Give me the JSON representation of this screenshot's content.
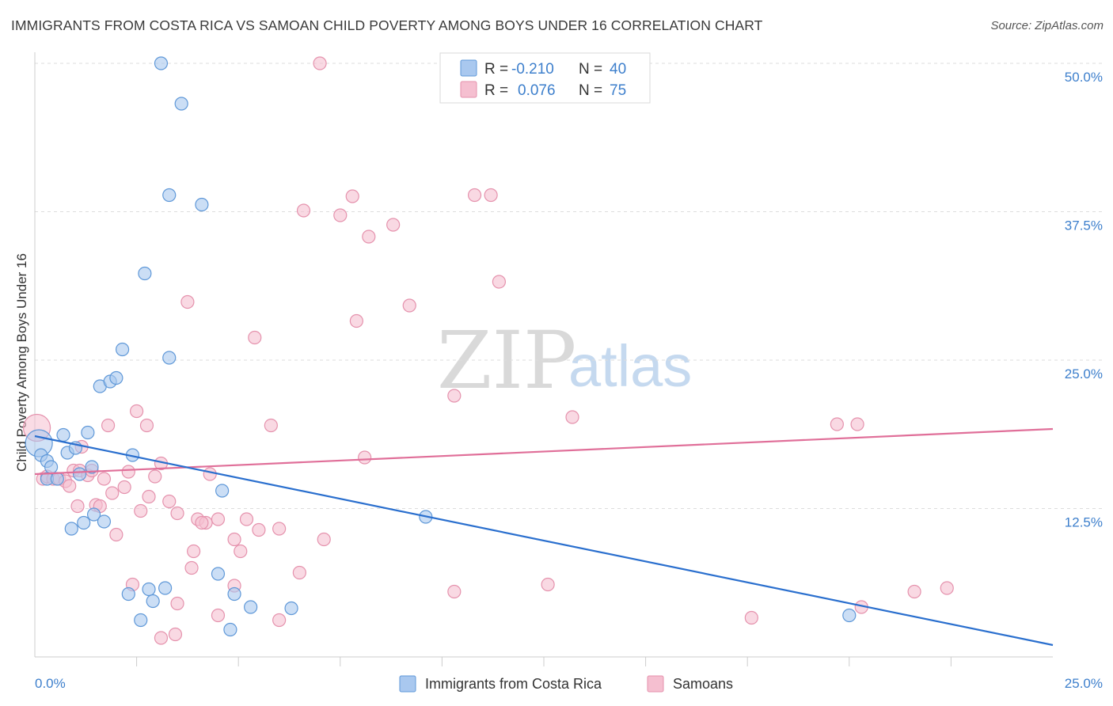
{
  "header": {
    "title": "IMMIGRANTS FROM COSTA RICA VS SAMOAN CHILD POVERTY AMONG BOYS UNDER 16 CORRELATION CHART",
    "source": "Source: ZipAtlas.com"
  },
  "watermark": {
    "zip": "ZIP",
    "atlas": "atlas"
  },
  "colors": {
    "blue_fill": "#a9c8ef",
    "blue_stroke": "#5f98d8",
    "blue_line": "#2a6fce",
    "pink_fill": "#f5bfd0",
    "pink_stroke": "#e592ad",
    "pink_line": "#e06f99",
    "tick_text": "#3d7fcc",
    "grid": "#dddddd"
  },
  "legend_top": {
    "rows": [
      {
        "r_label": "R =",
        "r_value": "-0.210",
        "n_label": "N =",
        "n_value": "40"
      },
      {
        "r_label": "R =",
        "r_value": "0.076",
        "n_label": "N =",
        "n_value": "75"
      }
    ]
  },
  "legend_bottom": {
    "items": [
      {
        "label": "Immigrants from Costa Rica"
      },
      {
        "label": "Samoans"
      }
    ]
  },
  "chart_data": {
    "type": "scatter",
    "title": "IMMIGRANTS FROM COSTA RICA VS SAMOAN CHILD POVERTY AMONG BOYS UNDER 16 CORRELATION CHART",
    "xlabel": "",
    "ylabel": "Child Poverty Among Boys Under 16",
    "xlim": [
      0,
      25
    ],
    "ylim": [
      0,
      50
    ],
    "x_tick_labels": [
      "0.0%",
      "25.0%"
    ],
    "y_ticks": [
      12.5,
      25,
      37.5,
      50
    ],
    "y_tick_labels": [
      "12.5%",
      "25.0%",
      "37.5%",
      "50.0%"
    ],
    "grid": "horizontal dashed",
    "legend_position": "top-center",
    "series": [
      {
        "name": "Immigrants from Costa Rica",
        "color": "#a9c8ef",
        "trend": {
          "x": [
            0,
            25
          ],
          "y": [
            18.6,
            1.0
          ]
        },
        "points": [
          {
            "x": 0.1,
            "y": 18.0,
            "big": true
          },
          {
            "x": 0.15,
            "y": 17.0
          },
          {
            "x": 0.3,
            "y": 16.5
          },
          {
            "x": 0.4,
            "y": 16.0
          },
          {
            "x": 0.3,
            "y": 15.0
          },
          {
            "x": 0.55,
            "y": 15.0
          },
          {
            "x": 0.7,
            "y": 18.7
          },
          {
            "x": 0.8,
            "y": 17.2
          },
          {
            "x": 1.0,
            "y": 17.6
          },
          {
            "x": 1.1,
            "y": 15.4
          },
          {
            "x": 1.3,
            "y": 18.9
          },
          {
            "x": 1.4,
            "y": 16.0
          },
          {
            "x": 0.9,
            "y": 10.8
          },
          {
            "x": 1.2,
            "y": 11.3
          },
          {
            "x": 1.45,
            "y": 12.0
          },
          {
            "x": 1.7,
            "y": 11.4
          },
          {
            "x": 1.6,
            "y": 22.8
          },
          {
            "x": 1.85,
            "y": 23.2
          },
          {
            "x": 2.0,
            "y": 23.5
          },
          {
            "x": 2.15,
            "y": 25.9
          },
          {
            "x": 2.4,
            "y": 17.0
          },
          {
            "x": 2.7,
            "y": 32.3
          },
          {
            "x": 3.1,
            "y": 50.0
          },
          {
            "x": 3.6,
            "y": 46.6
          },
          {
            "x": 3.3,
            "y": 38.9
          },
          {
            "x": 4.1,
            "y": 38.1
          },
          {
            "x": 3.3,
            "y": 25.2
          },
          {
            "x": 4.6,
            "y": 14.0
          },
          {
            "x": 2.3,
            "y": 5.3
          },
          {
            "x": 2.8,
            "y": 5.7
          },
          {
            "x": 2.9,
            "y": 4.7
          },
          {
            "x": 3.2,
            "y": 5.8
          },
          {
            "x": 2.6,
            "y": 3.1
          },
          {
            "x": 4.5,
            "y": 7.0
          },
          {
            "x": 4.9,
            "y": 5.3
          },
          {
            "x": 4.8,
            "y": 2.3
          },
          {
            "x": 5.3,
            "y": 4.2
          },
          {
            "x": 6.3,
            "y": 4.1
          },
          {
            "x": 9.6,
            "y": 11.8
          },
          {
            "x": 20.0,
            "y": 3.5
          }
        ]
      },
      {
        "name": "Samoans",
        "color": "#f5bfd0",
        "trend": {
          "x": [
            0,
            25
          ],
          "y": [
            15.4,
            19.2
          ]
        },
        "points": [
          {
            "x": 0.05,
            "y": 19.3,
            "big": true
          },
          {
            "x": 0.2,
            "y": 15.0
          },
          {
            "x": 0.3,
            "y": 15.2
          },
          {
            "x": 0.45,
            "y": 15.0
          },
          {
            "x": 0.6,
            "y": 15.0
          },
          {
            "x": 0.75,
            "y": 14.8
          },
          {
            "x": 0.85,
            "y": 14.4
          },
          {
            "x": 0.95,
            "y": 15.7
          },
          {
            "x": 1.1,
            "y": 15.7
          },
          {
            "x": 1.15,
            "y": 17.7
          },
          {
            "x": 1.3,
            "y": 15.3
          },
          {
            "x": 1.4,
            "y": 15.7
          },
          {
            "x": 1.05,
            "y": 12.7
          },
          {
            "x": 1.5,
            "y": 12.8
          },
          {
            "x": 1.6,
            "y": 12.7
          },
          {
            "x": 1.7,
            "y": 15.0
          },
          {
            "x": 1.9,
            "y": 13.8
          },
          {
            "x": 1.8,
            "y": 19.5
          },
          {
            "x": 2.0,
            "y": 10.3
          },
          {
            "x": 2.2,
            "y": 14.3
          },
          {
            "x": 2.3,
            "y": 15.6
          },
          {
            "x": 2.5,
            "y": 20.7
          },
          {
            "x": 2.6,
            "y": 12.3
          },
          {
            "x": 2.75,
            "y": 19.5
          },
          {
            "x": 2.8,
            "y": 13.5
          },
          {
            "x": 2.95,
            "y": 15.2
          },
          {
            "x": 3.1,
            "y": 16.3
          },
          {
            "x": 3.3,
            "y": 13.1
          },
          {
            "x": 3.5,
            "y": 12.1
          },
          {
            "x": 3.75,
            "y": 29.9
          },
          {
            "x": 3.9,
            "y": 8.9
          },
          {
            "x": 3.85,
            "y": 7.5
          },
          {
            "x": 4.0,
            "y": 11.6
          },
          {
            "x": 4.2,
            "y": 11.3
          },
          {
            "x": 4.3,
            "y": 15.4
          },
          {
            "x": 4.1,
            "y": 11.3
          },
          {
            "x": 4.5,
            "y": 11.6
          },
          {
            "x": 4.9,
            "y": 9.9
          },
          {
            "x": 5.05,
            "y": 8.9
          },
          {
            "x": 5.2,
            "y": 11.6
          },
          {
            "x": 5.4,
            "y": 26.9
          },
          {
            "x": 5.5,
            "y": 10.7
          },
          {
            "x": 5.8,
            "y": 19.5
          },
          {
            "x": 6.0,
            "y": 10.8
          },
          {
            "x": 6.6,
            "y": 37.6
          },
          {
            "x": 6.5,
            "y": 7.1
          },
          {
            "x": 7.1,
            "y": 9.9
          },
          {
            "x": 7.5,
            "y": 37.2
          },
          {
            "x": 7.8,
            "y": 38.8
          },
          {
            "x": 7.9,
            "y": 28.3
          },
          {
            "x": 8.2,
            "y": 35.4
          },
          {
            "x": 8.1,
            "y": 16.8
          },
          {
            "x": 8.8,
            "y": 36.4
          },
          {
            "x": 9.2,
            "y": 29.6
          },
          {
            "x": 10.3,
            "y": 22.0
          },
          {
            "x": 10.8,
            "y": 38.9
          },
          {
            "x": 11.2,
            "y": 38.9
          },
          {
            "x": 11.4,
            "y": 31.6
          },
          {
            "x": 13.2,
            "y": 20.2
          },
          {
            "x": 19.7,
            "y": 19.6
          },
          {
            "x": 20.2,
            "y": 19.6
          },
          {
            "x": 7.0,
            "y": 50.0
          },
          {
            "x": 2.4,
            "y": 6.1
          },
          {
            "x": 3.5,
            "y": 4.5
          },
          {
            "x": 3.1,
            "y": 1.6
          },
          {
            "x": 3.45,
            "y": 1.9
          },
          {
            "x": 4.5,
            "y": 3.5
          },
          {
            "x": 4.9,
            "y": 6.0
          },
          {
            "x": 6.0,
            "y": 3.1
          },
          {
            "x": 10.3,
            "y": 5.5
          },
          {
            "x": 12.6,
            "y": 6.1
          },
          {
            "x": 17.6,
            "y": 3.3
          },
          {
            "x": 20.3,
            "y": 4.2
          },
          {
            "x": 21.6,
            "y": 5.5
          },
          {
            "x": 22.4,
            "y": 5.8
          }
        ]
      }
    ]
  }
}
